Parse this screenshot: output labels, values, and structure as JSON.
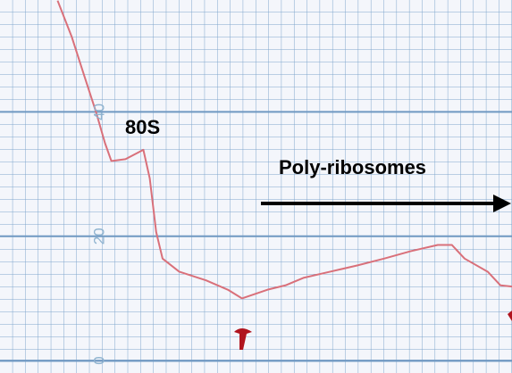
{
  "chart_data": {
    "type": "line",
    "annotations": [
      "80S",
      "Poly-ribosomes"
    ],
    "x": [
      4.5,
      5.6,
      6.6,
      7.5,
      8.2,
      8.7,
      9.8,
      11.2,
      11.7,
      12.2,
      12.7,
      14.0,
      16.1,
      17.8,
      18.9,
      19.9,
      20.9,
      22.3,
      23.7,
      25.8,
      27.9,
      30.0,
      32.1,
      34.2,
      35.3,
      36.3,
      38.1,
      39.1,
      40.0
    ],
    "series": [
      {
        "color": "#d9707a",
        "values": [
          57.9,
          52.1,
          45.7,
          40,
          35,
          32.1,
          32.4,
          33.9,
          29.3,
          20.7,
          16.4,
          14.3,
          12.9,
          11.4,
          10,
          10.7,
          11.4,
          12.1,
          13.3,
          14.3,
          15.3,
          16.4,
          17.6,
          18.6,
          18.6,
          16.4,
          14.3,
          12.1,
          11.9
        ]
      }
    ],
    "xlim": [
      0,
      40
    ],
    "ylim": [
      -2,
      58
    ],
    "yticks": [
      0,
      20,
      40
    ],
    "grid": true
  }
}
